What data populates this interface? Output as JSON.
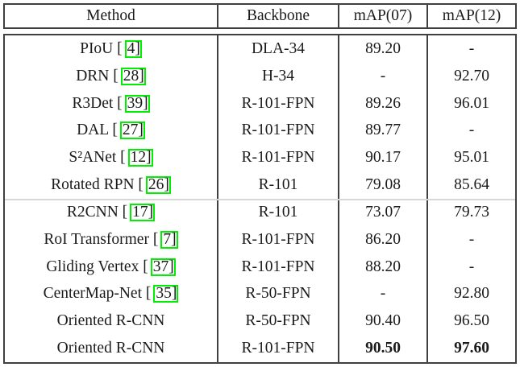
{
  "table": {
    "headers": [
      "Method",
      "Backbone",
      "mAP(07)",
      "mAP(12)"
    ],
    "rows": [
      {
        "method": "PIoU [",
        "cite": "4]",
        "backbone": "DLA-34",
        "map07": "89.20",
        "map12": "-"
      },
      {
        "method": "DRN [",
        "cite": "28]",
        "backbone": "H-34",
        "map07": "-",
        "map12": "92.70"
      },
      {
        "method": "R3Det [",
        "cite": "39]",
        "backbone": "R-101-FPN",
        "map07": "89.26",
        "map12": "96.01"
      },
      {
        "method": "DAL [",
        "cite": "27]",
        "backbone": "R-101-FPN",
        "map07": "89.77",
        "map12": "-"
      },
      {
        "method": "S²ANet [",
        "cite": "12]",
        "backbone": "R-101-FPN",
        "map07": "90.17",
        "map12": "95.01"
      },
      {
        "method": "Rotated RPN [",
        "cite": "26]",
        "backbone": "R-101",
        "map07": "79.08",
        "map12": "85.64"
      },
      {
        "method": "R2CNN [",
        "cite": "17]",
        "backbone": "R-101",
        "map07": "73.07",
        "map12": "79.73"
      },
      {
        "method": "RoI Transformer [",
        "cite": "7]",
        "backbone": "R-101-FPN",
        "map07": "86.20",
        "map12": "-"
      },
      {
        "method": "Gliding Vertex [",
        "cite": "37]",
        "backbone": "R-101-FPN",
        "map07": "88.20",
        "map12": "-"
      },
      {
        "method": "CenterMap-Net [",
        "cite": "35]",
        "backbone": "R-50-FPN",
        "map07": "-",
        "map12": "92.80"
      },
      {
        "method": "Oriented R-CNN",
        "cite": "",
        "backbone": "R-50-FPN",
        "map07": "90.40",
        "map12": "96.50"
      },
      {
        "method": "Oriented R-CNN",
        "cite": "",
        "backbone": "R-101-FPN",
        "map07": "90.50",
        "map12": "97.60"
      }
    ],
    "colors": {
      "citation_link_box": "#00ef00",
      "table_border": "#404040",
      "faint_rule": "#d7d7d7",
      "text": "#1b1b1b"
    }
  }
}
